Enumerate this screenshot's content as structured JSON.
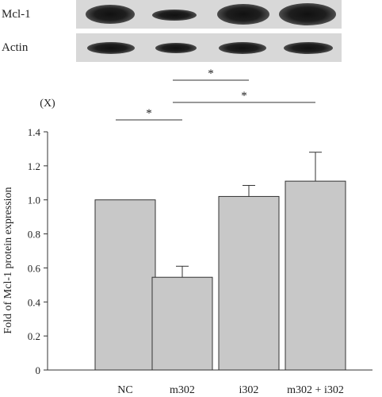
{
  "blot": {
    "rows": [
      {
        "label": "Mcl-1",
        "intensities": [
          0.7,
          0.35,
          0.85,
          0.95
        ]
      },
      {
        "label": "Actin",
        "intensities": [
          0.7,
          0.65,
          0.7,
          0.7
        ]
      }
    ]
  },
  "significance": [
    {
      "from": "NC",
      "to": "m302",
      "label": "*"
    },
    {
      "from": "m302",
      "to": "i302",
      "label": "*"
    },
    {
      "from": "m302",
      "to": "m302 + i302",
      "label": "*"
    }
  ],
  "chart_data": {
    "type": "bar",
    "categories": [
      "NC",
      "m302",
      "i302",
      "m302 + i302"
    ],
    "values": [
      1.0,
      0.545,
      1.02,
      1.11
    ],
    "errors": [
      0,
      0.065,
      0.065,
      0.17
    ],
    "ylabel": "Fold of Mcl-1 protein expression",
    "yunit": "(X)",
    "ylim": [
      0,
      1.4
    ],
    "yticks": [
      "0",
      "0.2",
      "0.4",
      "0.6",
      "0.8",
      "1.0",
      "1.2",
      "1.4"
    ],
    "bar_color": "#c8c8c8",
    "grid": false
  }
}
